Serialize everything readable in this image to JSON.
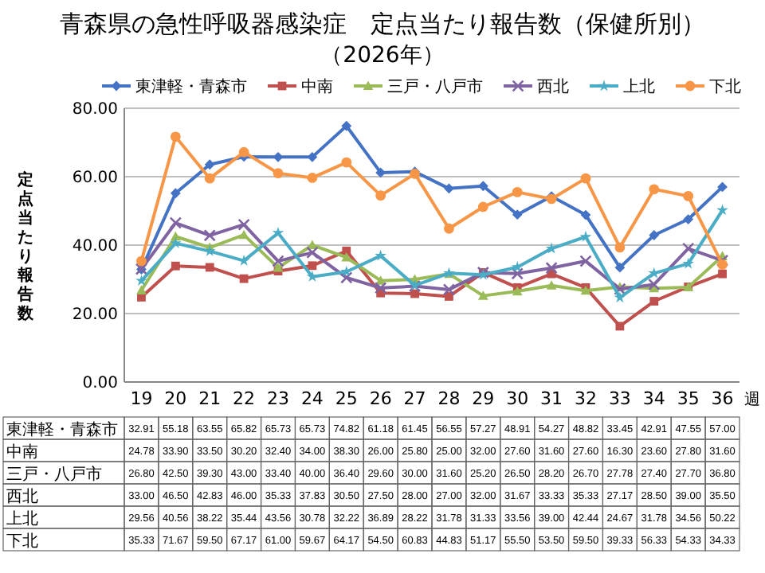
{
  "chart_data": {
    "type": "line",
    "title": "青森県の急性呼吸器感染症　定点当たり報告数（保健所別）",
    "subtitle": "（2026年）",
    "ylabel": "定点当たり報告数",
    "xlabel": "週",
    "categories": [
      "19",
      "20",
      "21",
      "22",
      "23",
      "24",
      "25",
      "26",
      "27",
      "28",
      "29",
      "30",
      "31",
      "32",
      "33",
      "34",
      "35",
      "36"
    ],
    "ylim": [
      0,
      80
    ],
    "yticks": [
      {
        "value": 0,
        "label": "0.00"
      },
      {
        "value": 20,
        "label": "20.00"
      },
      {
        "value": 40,
        "label": "40.00"
      },
      {
        "value": 60,
        "label": "60.00"
      },
      {
        "value": 80,
        "label": "80.00"
      }
    ],
    "grid": "y",
    "legend": "top",
    "series": [
      {
        "name": "東津軽・青森市",
        "color": "#4472c4",
        "marker": "diamond",
        "values": [
          32.91,
          55.18,
          63.55,
          65.82,
          65.73,
          65.73,
          74.82,
          61.18,
          61.45,
          56.55,
          57.27,
          48.91,
          54.27,
          48.82,
          33.45,
          42.91,
          47.55,
          57.0
        ],
        "value_labels": [
          "32.91",
          "55.18",
          "63.55",
          "65.82",
          "65.73",
          "65.73",
          "74.82",
          "61.18",
          "61.45",
          "56.55",
          "57.27",
          "48.91",
          "54.27",
          "48.82",
          "33.45",
          "42.91",
          "47.55",
          "57.00"
        ]
      },
      {
        "name": "中南",
        "color": "#c0504d",
        "marker": "square",
        "values": [
          24.78,
          33.9,
          33.5,
          30.2,
          32.4,
          34.0,
          38.3,
          26.0,
          25.8,
          25.0,
          32.0,
          27.6,
          31.6,
          27.6,
          16.3,
          23.6,
          27.8,
          31.6
        ],
        "value_labels": [
          "24.78",
          "33.90",
          "33.50",
          "30.20",
          "32.40",
          "34.00",
          "38.30",
          "26.00",
          "25.80",
          "25.00",
          "32.00",
          "27.60",
          "31.60",
          "27.60",
          "16.30",
          "23.60",
          "27.80",
          "31.60"
        ]
      },
      {
        "name": "三戸・八戸市",
        "color": "#9bbb59",
        "marker": "triangle",
        "values": [
          26.8,
          42.5,
          39.3,
          43.0,
          33.4,
          40.0,
          36.4,
          29.6,
          30.0,
          31.6,
          25.2,
          26.5,
          28.2,
          26.7,
          27.78,
          27.4,
          27.7,
          36.8
        ],
        "value_labels": [
          "26.80",
          "42.50",
          "39.30",
          "43.00",
          "33.40",
          "40.00",
          "36.40",
          "29.60",
          "30.00",
          "31.60",
          "25.20",
          "26.50",
          "28.20",
          "26.70",
          "27.78",
          "27.40",
          "27.70",
          "36.80"
        ]
      },
      {
        "name": "西北",
        "color": "#8064a2",
        "marker": "cross",
        "values": [
          33.0,
          46.5,
          42.83,
          46.0,
          35.33,
          37.83,
          30.5,
          27.5,
          28.0,
          27.0,
          32.0,
          31.67,
          33.33,
          35.33,
          27.17,
          28.5,
          39.0,
          35.5
        ],
        "value_labels": [
          "33.00",
          "46.50",
          "42.83",
          "46.00",
          "35.33",
          "37.83",
          "30.50",
          "27.50",
          "28.00",
          "27.00",
          "32.00",
          "31.67",
          "33.33",
          "35.33",
          "27.17",
          "28.50",
          "39.00",
          "35.50"
        ]
      },
      {
        "name": "上北",
        "color": "#4bacc6",
        "marker": "star",
        "values": [
          29.56,
          40.56,
          38.22,
          35.44,
          43.56,
          30.78,
          32.22,
          36.89,
          28.22,
          31.78,
          31.33,
          33.56,
          39.0,
          42.44,
          24.67,
          31.78,
          34.56,
          50.22
        ],
        "value_labels": [
          "29.56",
          "40.56",
          "38.22",
          "35.44",
          "43.56",
          "30.78",
          "32.22",
          "36.89",
          "28.22",
          "31.78",
          "31.33",
          "33.56",
          "39.00",
          "42.44",
          "24.67",
          "31.78",
          "34.56",
          "50.22"
        ]
      },
      {
        "name": "下北",
        "color": "#f79646",
        "marker": "circle",
        "values": [
          35.33,
          71.67,
          59.5,
          67.17,
          61.0,
          59.67,
          64.17,
          54.5,
          60.83,
          44.83,
          51.17,
          55.5,
          53.5,
          59.5,
          39.33,
          56.33,
          54.33,
          34.33
        ],
        "value_labels": [
          "35.33",
          "71.67",
          "59.50",
          "67.17",
          "61.00",
          "59.67",
          "64.17",
          "54.50",
          "60.83",
          "44.83",
          "51.17",
          "55.50",
          "53.50",
          "59.50",
          "39.33",
          "56.33",
          "54.33",
          "34.33"
        ]
      }
    ]
  }
}
